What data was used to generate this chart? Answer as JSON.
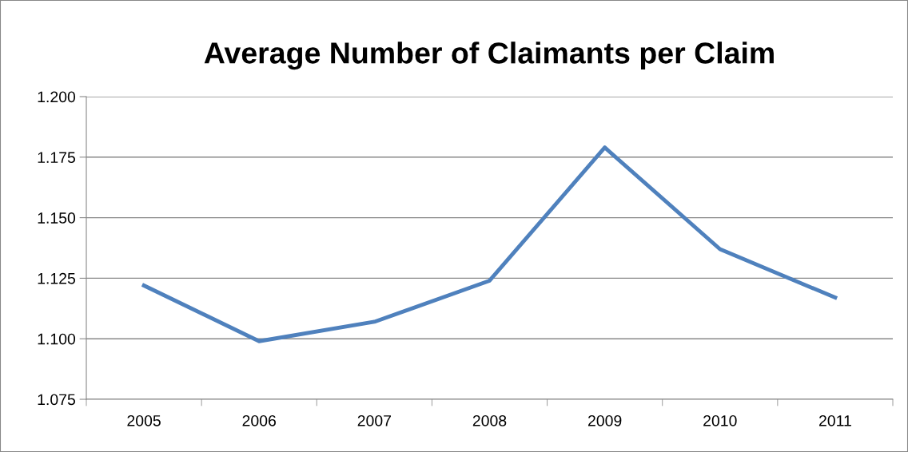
{
  "chart_data": {
    "type": "line",
    "title": "Average Number of Claimants per Claim",
    "categories": [
      "2005",
      "2006",
      "2007",
      "2008",
      "2009",
      "2010",
      "2011"
    ],
    "series": [
      {
        "color": "#4f81bd",
        "values": [
          1.122,
          1.099,
          1.107,
          1.124,
          1.179,
          1.137,
          1.117
        ]
      }
    ],
    "ylim": [
      1.075,
      1.2
    ],
    "yticks": [
      {
        "value": 1.075,
        "label": "1.075"
      },
      {
        "value": 1.1,
        "label": "1.100"
      },
      {
        "value": 1.125,
        "label": "1.125"
      },
      {
        "value": 1.15,
        "label": "1.150"
      },
      {
        "value": 1.175,
        "label": "1.175"
      },
      {
        "value": 1.2,
        "label": "1.200"
      }
    ],
    "grid": "y",
    "legend": false,
    "marker": "none",
    "line_style": "solid"
  }
}
